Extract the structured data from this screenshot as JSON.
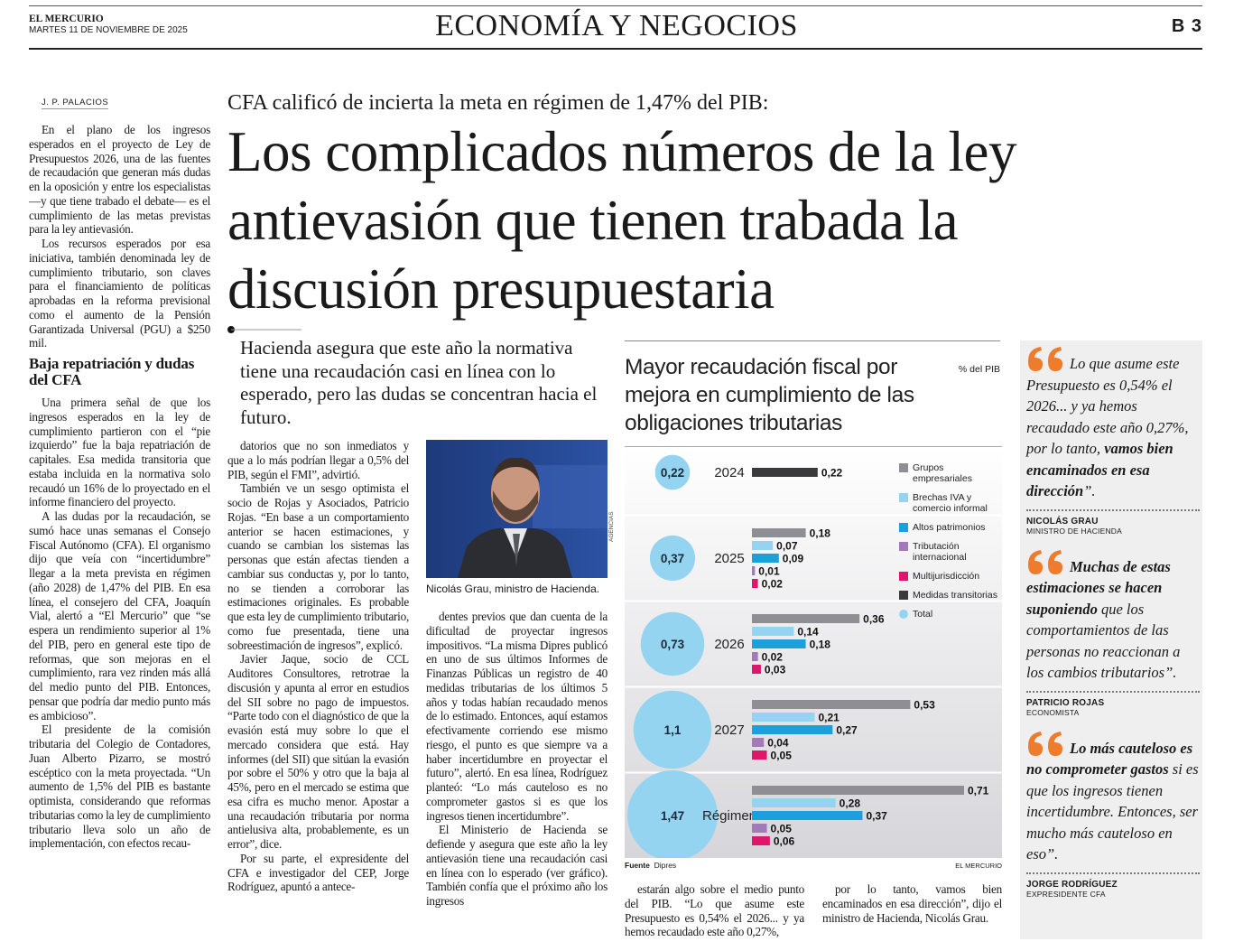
{
  "header": {
    "publication": "EL MERCURIO",
    "date": "MARTES 11 DE NOVIEMBRE DE 2025",
    "section": "ECONOMÍA Y NEGOCIOS",
    "page": "B 3"
  },
  "article": {
    "byline": "J. P. PALACIOS",
    "kicker": "CFA calificó de incierta la meta en régimen de 1,47% del PIB:",
    "headline": "Los complicados números de la ley antievasión que tienen trabada la discusión presupuestaria",
    "deck": "Hacienda asegura que este año la normativa tiene una recaudación casi en línea con lo esperado, pero las dudas se concentran hacia el futuro.",
    "col1_top": [
      "En el plano de los ingresos esperados en el proyecto de Ley de Presupuestos 2026, una de las fuentes de recaudación que generan más dudas en la oposición y entre los especialistas —y que tiene trabado el debate— es el cumplimiento de las metas previstas para la ley antievasión.",
      "Los recursos esperados por esa iniciativa, también denominada ley de cumplimiento tributario, son claves para el financiamiento de políticas aprobadas en la reforma previsional como el aumento de la Pensión Garantizada Universal (PGU) a $250 mil."
    ],
    "subhead": "Baja repatriación y dudas del CFA",
    "col1_bottom": [
      "Una primera señal de que los ingresos esperados en la ley de cumplimiento partieron con el “pie izquierdo” fue la baja repatriación de capitales. Esa medida transitoria que estaba incluida en la normativa solo recaudó un 16% de lo proyectado en el informe financiero del proyecto.",
      "A las dudas por la recaudación, se sumó hace unas semanas el Consejo Fiscal Autónomo (CFA). El organismo dijo que veía con “incertidumbre” llegar a la meta prevista en régimen (año 2028) de 1,47% del PIB. En esa línea, el consejero del CFA, Joaquín Vial, alertó a “El Mercurio” que “se espera un rendimiento superior al 1% del PIB, pero en general este tipo de reformas, que son mejoras en el cumplimiento, rara vez rinden más allá del medio punto del PIB. Entonces, pensar que podría dar medio punto más es ambicioso”.",
      "El presidente de la comisión tributaria del Colegio de Contadores, Juan Alberto Pizarro, se mostró escéptico con la meta proyectada. “Un aumento de 1,5% del PIB es bastante optimista, considerando que reformas tributarias como la ley de cumplimiento tributario lleva solo un año de implementación, con efectos recau-"
    ],
    "col2": [
      "datorios que no son inmediatos y que a lo más podrían llegar a 0,5% del PIB, según el FMI”, advirtió.",
      "También ve un sesgo optimista el socio de Rojas y Asociados, Patricio Rojas. “En base a un comportamiento anterior se hacen estimaciones, y cuando se cambian los sistemas las personas que están afectas tienden a cambiar sus conductas y, por lo tanto, no se tienden a corroborar las estimaciones originales. Es probable que esta ley de cumplimiento tributario, como fue presentada, tiene una sobreestimación de ingresos”, explicó.",
      "Javier Jaque, socio de CCL Auditores Consultores, retrotrae la discusión y apunta al error en estudios del SII sobre no pago de impuestos. “Parte todo con el diagnóstico de que la evasión está muy sobre lo que el mercado considera que está. Hay informes (del SII) que sitúan la evasión por sobre el 50% y otro que la baja al 45%, pero en el mercado se estima que esa cifra es mucho menor. Apostar a una recaudación tributaria por norma antielusiva alta, probablemente, es un error”, dice.",
      "Por su parte, el expresidente del CFA e investigador del CEP, Jorge Rodríguez, apuntó a antece-"
    ],
    "photo_credit": "AGENCIAS",
    "photo_caption": "Nicolás Grau, ministro de Hacienda.",
    "col3": [
      "dentes previos que dan cuenta de la dificultad de proyectar ingresos impositivos. “La misma Dipres publicó en uno de sus últimos Informes de Finanzas Públicas un registro de 40 medidas tributarias de los últimos 5 años y todas habían recaudado menos de lo estimado. Entonces, aquí estamos efectivamente corriendo ese mismo riesgo, el punto es que siempre va a haber incertidumbre en proyectar el futuro”, alertó. En esa línea, Rodríguez planteó: “Lo más cauteloso es no comprometer gastos si es que los ingresos tienen incertidumbre”.",
      "El Ministerio de Hacienda se defiende y asegura que este año la ley antievasión tiene una recaudación casi en línea con lo esperado (ver gráfico). También confía que el próximo año los ingresos"
    ],
    "col4": [
      "estarán algo sobre el medio punto del PIB. “Lo que asume este Presupuesto es 0,54% el 2026... y ya hemos recaudado este año 0,27%,"
    ],
    "col5": [
      "por lo tanto, vamos bien encaminados en esa dirección”, dijo el ministro de Hacienda, Nicolás Grau."
    ]
  },
  "sidebar": {
    "quotes": [
      {
        "parts": [
          {
            "text": "Lo que asume este Presupuesto es 0,54% el 2026... y ya hemos recaudado este año 0,27%, por lo tanto, ",
            "style": "regular"
          },
          {
            "text": "vamos bien encaminados en esa dirección",
            "style": "bold"
          },
          {
            "text": "”.",
            "style": "regular"
          }
        ],
        "name": "NICOLÁS GRAU",
        "role": "MINISTRO DE HACIENDA"
      },
      {
        "parts": [
          {
            "text": "Muchas de estas estimaciones se hacen suponiendo",
            "style": "bold"
          },
          {
            "text": " que los comportamientos de las personas no reaccionan a los cambios tributarios”.",
            "style": "regular"
          }
        ],
        "name": "PATRICIO ROJAS",
        "role": "ECONOMISTA"
      },
      {
        "parts": [
          {
            "text": "Lo más cauteloso es no comprometer gastos",
            "style": "bold"
          },
          {
            "text": " si es que los ingresos tienen incertidumbre. Entonces, ser mucho más cauteloso en eso”.",
            "style": "regular"
          }
        ],
        "name": "JORGE RODRÍGUEZ",
        "role": "EXPRESIDENTE CFA"
      }
    ]
  },
  "chart_data": {
    "type": "bar",
    "orientation": "horizontal",
    "title": "Mayor recaudación fiscal por mejora en cumplimiento de las obligaciones tributarias",
    "unit": "% del PIB",
    "source_label": "Fuente",
    "source": "Dipres",
    "credit": "EL MERCURIO",
    "categories": [
      "2024",
      "2025",
      "2026",
      "2027",
      "Régimen"
    ],
    "series": [
      {
        "name": "Grupos empresariales",
        "color": "#8e8e95",
        "values": [
          null,
          0.18,
          0.36,
          0.53,
          0.71
        ],
        "value_labels": [
          null,
          "0,18",
          "0,36",
          "0,53",
          "0,71"
        ]
      },
      {
        "name": "Brechas IVA y comercio informal",
        "color": "#94d4f0",
        "values": [
          null,
          0.07,
          0.14,
          0.21,
          0.28
        ],
        "value_labels": [
          null,
          "0,07",
          "0,14",
          "0,21",
          "0,28"
        ]
      },
      {
        "name": "Altos patrimonios",
        "color": "#1ba0dc",
        "values": [
          null,
          0.09,
          0.18,
          0.27,
          0.37
        ],
        "value_labels": [
          null,
          "0,09",
          "0,18",
          "0,27",
          "0,37"
        ]
      },
      {
        "name": "Tributación internacional",
        "color": "#a27ab8",
        "values": [
          null,
          0.01,
          0.02,
          0.04,
          0.05
        ],
        "value_labels": [
          null,
          "0,01",
          "0,02",
          "0,04",
          "0,05"
        ]
      },
      {
        "name": "Multijurisdicción",
        "color": "#e0166a",
        "values": [
          null,
          0.02,
          0.03,
          0.05,
          0.06
        ],
        "value_labels": [
          null,
          "0,02",
          "0,03",
          "0,05",
          "0,06"
        ]
      },
      {
        "name": "Medidas transitorias",
        "color": "#3a3a3c",
        "values": [
          0.22,
          null,
          null,
          null,
          null
        ],
        "value_labels": [
          "0,22",
          null,
          null,
          null,
          null
        ]
      },
      {
        "name": "Total",
        "mark": "bubble",
        "color": "#94d4f0",
        "values": [
          0.22,
          0.37,
          0.73,
          1.1,
          1.47
        ],
        "value_labels": [
          "0,22",
          "0,37",
          "0,73",
          "1,1",
          "1,47"
        ]
      }
    ]
  }
}
